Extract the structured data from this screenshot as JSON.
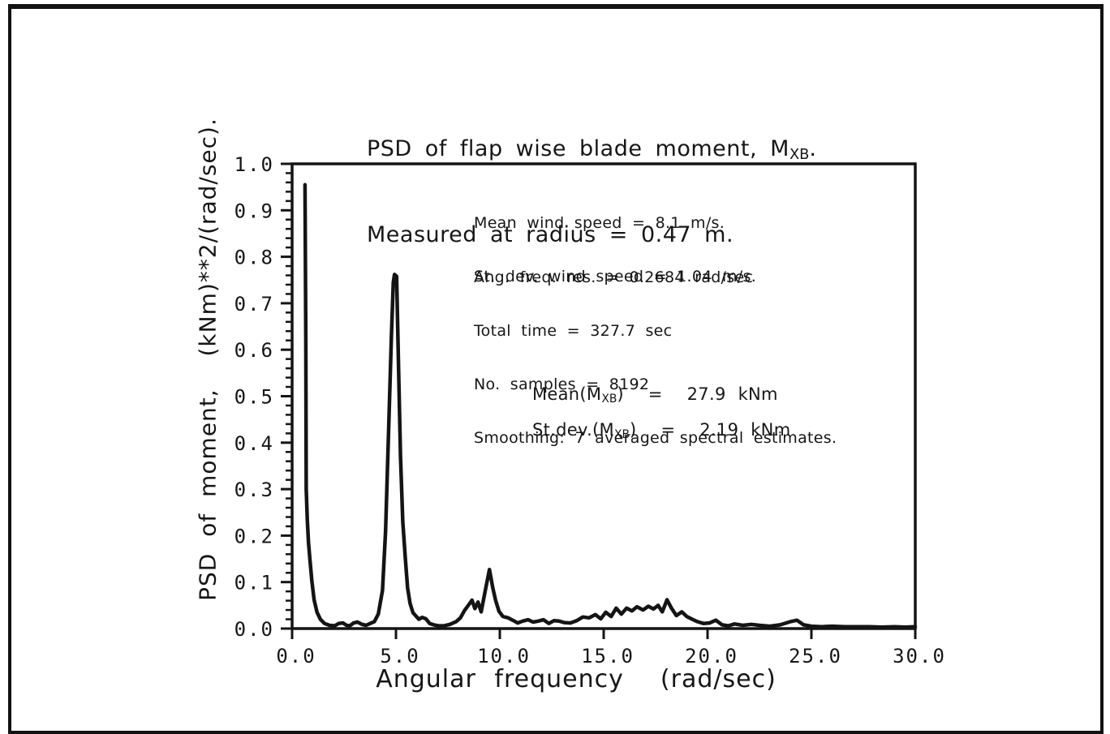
{
  "title": {
    "line1_pre": "PSD of flap wise blade moment, M",
    "line1_sub": "XB",
    "line1_post": ".",
    "line2": "Measured at radius = 0.47 m."
  },
  "stats": {
    "sub": "XB",
    "mean_pre": "Mean(M",
    "mean_post": ")  =  27.9 kNm",
    "stdev_pre": "St.dev.(M",
    "stdev_post": ")  =  2.19 kNm"
  },
  "chart_data": {
    "type": "line",
    "title": "PSD of flap wise blade moment, M_XB.",
    "subtitle": "Measured at radius = 0.47 m.",
    "xlabel": "Angular frequency  (rad/sec)",
    "ylabel": "PSD of moment,  (kNm)**2/(rad/sec).",
    "xlim": [
      0,
      30
    ],
    "ylim": [
      0,
      1
    ],
    "x_ticks": [
      0,
      5,
      10,
      15,
      20,
      25,
      30
    ],
    "x_tick_labels": [
      "0.0",
      "5.0",
      "10.0",
      "15.0",
      "20.0",
      "25.0",
      "30.0"
    ],
    "y_ticks": [
      0,
      0.1,
      0.2,
      0.3,
      0.4,
      0.5,
      0.6,
      0.7,
      0.8,
      0.9,
      1.0
    ],
    "y_tick_labels": [
      "0.0",
      "0.1",
      "0.2",
      "0.3",
      "0.4",
      "0.5",
      "0.6",
      "0.7",
      "0.8",
      "0.9",
      "1.0"
    ],
    "y_minor_step": 0.02,
    "grid": false,
    "line_color": "#141414",
    "annotations": {
      "wind": [
        "Mean wind speed = 8.1 m/s.",
        "St. dev. wind speed = 1.04 m/s."
      ],
      "processing": [
        "Ang. freq. res. = 0.2684 rad/sec",
        "Total time = 327.7 sec",
        "No. samples = 8192",
        "Smoothing: 7 averaged spectral estimates."
      ],
      "mean_label": "Mean(M_XB) = 27.9 kNm",
      "stdev_label": "St.dev.(M_XB) = 2.19 kNm"
    },
    "series": [
      {
        "name": "PSD of flap wise blade moment",
        "points": [
          [
            0.62,
            0.955
          ],
          [
            0.66,
            0.62
          ],
          [
            0.68,
            0.3
          ],
          [
            0.73,
            0.235
          ],
          [
            0.79,
            0.185
          ],
          [
            0.86,
            0.148
          ],
          [
            0.95,
            0.103
          ],
          [
            1.06,
            0.062
          ],
          [
            1.2,
            0.035
          ],
          [
            1.36,
            0.02
          ],
          [
            1.56,
            0.011
          ],
          [
            1.8,
            0.007
          ],
          [
            2.05,
            0.006
          ],
          [
            2.25,
            0.011
          ],
          [
            2.45,
            0.012
          ],
          [
            2.62,
            0.007
          ],
          [
            2.78,
            0.006
          ],
          [
            2.96,
            0.012
          ],
          [
            3.15,
            0.014
          ],
          [
            3.36,
            0.009
          ],
          [
            3.56,
            0.007
          ],
          [
            3.76,
            0.011
          ],
          [
            3.96,
            0.015
          ],
          [
            4.15,
            0.031
          ],
          [
            4.35,
            0.082
          ],
          [
            4.5,
            0.21
          ],
          [
            4.65,
            0.43
          ],
          [
            4.78,
            0.63
          ],
          [
            4.87,
            0.745
          ],
          [
            4.93,
            0.762
          ],
          [
            5.03,
            0.758
          ],
          [
            5.12,
            0.57
          ],
          [
            5.22,
            0.37
          ],
          [
            5.33,
            0.23
          ],
          [
            5.45,
            0.152
          ],
          [
            5.56,
            0.088
          ],
          [
            5.68,
            0.054
          ],
          [
            5.82,
            0.034
          ],
          [
            5.96,
            0.027
          ],
          [
            6.1,
            0.02
          ],
          [
            6.26,
            0.024
          ],
          [
            6.44,
            0.021
          ],
          [
            6.62,
            0.011
          ],
          [
            6.82,
            0.008
          ],
          [
            7.05,
            0.006
          ],
          [
            7.32,
            0.006
          ],
          [
            7.6,
            0.009
          ],
          [
            7.9,
            0.015
          ],
          [
            8.1,
            0.023
          ],
          [
            8.3,
            0.039
          ],
          [
            8.5,
            0.051
          ],
          [
            8.66,
            0.061
          ],
          [
            8.8,
            0.043
          ],
          [
            8.95,
            0.057
          ],
          [
            9.1,
            0.036
          ],
          [
            9.3,
            0.082
          ],
          [
            9.5,
            0.127
          ],
          [
            9.66,
            0.088
          ],
          [
            9.8,
            0.06
          ],
          [
            9.96,
            0.037
          ],
          [
            10.15,
            0.026
          ],
          [
            10.4,
            0.023
          ],
          [
            10.62,
            0.018
          ],
          [
            10.86,
            0.012
          ],
          [
            11.1,
            0.016
          ],
          [
            11.36,
            0.019
          ],
          [
            11.6,
            0.014
          ],
          [
            11.85,
            0.016
          ],
          [
            12.1,
            0.019
          ],
          [
            12.36,
            0.011
          ],
          [
            12.6,
            0.017
          ],
          [
            12.86,
            0.016
          ],
          [
            13.1,
            0.013
          ],
          [
            13.4,
            0.012
          ],
          [
            13.7,
            0.017
          ],
          [
            14.0,
            0.025
          ],
          [
            14.3,
            0.023
          ],
          [
            14.6,
            0.03
          ],
          [
            14.86,
            0.021
          ],
          [
            15.1,
            0.035
          ],
          [
            15.36,
            0.026
          ],
          [
            15.6,
            0.044
          ],
          [
            15.85,
            0.031
          ],
          [
            16.1,
            0.044
          ],
          [
            16.36,
            0.038
          ],
          [
            16.6,
            0.047
          ],
          [
            16.9,
            0.04
          ],
          [
            17.15,
            0.048
          ],
          [
            17.4,
            0.042
          ],
          [
            17.62,
            0.05
          ],
          [
            17.82,
            0.036
          ],
          [
            18.05,
            0.062
          ],
          [
            18.26,
            0.044
          ],
          [
            18.5,
            0.028
          ],
          [
            18.76,
            0.036
          ],
          [
            19.0,
            0.026
          ],
          [
            19.26,
            0.02
          ],
          [
            19.5,
            0.015
          ],
          [
            19.8,
            0.011
          ],
          [
            20.1,
            0.012
          ],
          [
            20.4,
            0.018
          ],
          [
            20.7,
            0.008
          ],
          [
            21.0,
            0.006
          ],
          [
            21.3,
            0.01
          ],
          [
            21.7,
            0.007
          ],
          [
            22.1,
            0.009
          ],
          [
            22.5,
            0.007
          ],
          [
            23.0,
            0.005
          ],
          [
            23.5,
            0.008
          ],
          [
            24.0,
            0.015
          ],
          [
            24.3,
            0.018
          ],
          [
            24.62,
            0.008
          ],
          [
            25.0,
            0.005
          ],
          [
            25.5,
            0.004
          ],
          [
            26.0,
            0.005
          ],
          [
            26.6,
            0.004
          ],
          [
            27.2,
            0.004
          ],
          [
            27.8,
            0.004
          ],
          [
            28.4,
            0.003
          ],
          [
            29.0,
            0.004
          ],
          [
            29.5,
            0.003
          ],
          [
            30.0,
            0.004
          ]
        ]
      }
    ]
  }
}
